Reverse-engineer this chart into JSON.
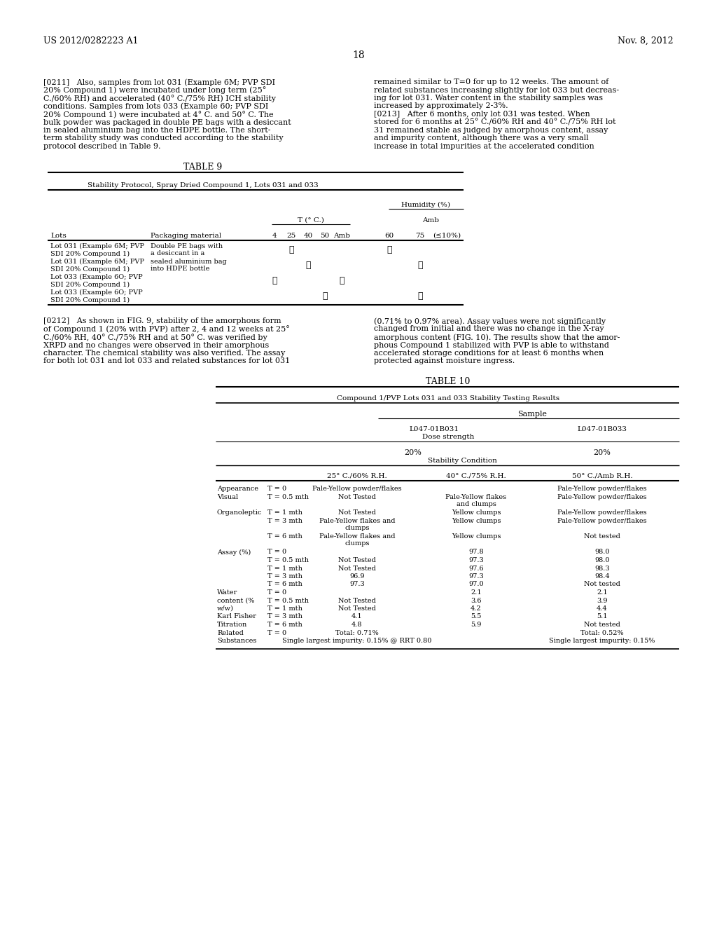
{
  "header_left": "US 2012/0282223 A1",
  "header_right": "Nov. 8, 2012",
  "page_number": "18",
  "para_211_left": "[0211]   Also, samples from lot 031 (Example 6M; PVP SDI\n20% Compound 1) were incubated under long term (25°\nC./60% RH) and accelerated (40° C./75% RH) ICH stability\nconditions. Samples from lots 033 (Example 60; PVP SDI\n20% Compound 1) were incubated at 4° C. and 50° C. The\nbulk powder was packaged in double PE bags with a desiccant\nin sealed aluminium bag into the HDPE bottle. The short-\nterm stability study was conducted according to the stability\nprotocol described in Table 9.",
  "para_211_right": "remained similar to T=0 for up to 12 weeks. The amount of\nrelated substances increasing slightly for lot 033 but decreas-\ning for lot 031. Water content in the stability samples was\nincreased by approximately 2-3%.\n[0213]   After 6 months, only lot 031 was tested. When\nstored for 6 months at 25° C./60% RH and 40° C./75% RH lot\n31 remained stable as judged by amorphous content, assay\nand impurity content, although there was a very small\nincrease in total impurities at the accelerated condition",
  "table9_title": "TABLE 9",
  "table9_subtitle": "Stability Protocol, Spray Dried Compound 1, Lots 031 and 033",
  "table9_humidity_label": "Humidity (%)",
  "table9_temp_label": "T (° C.)",
  "table9_amb_label": "Amb",
  "table9_col_headers": [
    "Lots",
    "Packaging material",
    "4",
    "25",
    "40",
    "50",
    "Amb",
    "60",
    "75",
    "(≤10%)"
  ],
  "para_212_left": "[0212]   As shown in FIG. 9, stability of the amorphous form\nof Compound 1 (20% with PVP) after 2, 4 and 12 weeks at 25°\nC./60% RH, 40° C./75% RH and at 50° C. was verified by\nXRPD and no changes were observed in their amorphous\ncharacter. The chemical stability was also verified. The assay\nfor both lot 031 and lot 033 and related substances for lot 031",
  "para_212_right": "(0.71% to 0.97% area). Assay values were not significantly\nchanged from initial and there was no change in the X-ray\namorphous content (FIG. 10). The results show that the amor-\nphous Compound 1 stabilized with PVP is able to withstand\naccelerated storage conditions for at least 6 months when\nprotected against moisture ingress.",
  "table10_title": "TABLE 10",
  "table10_subtitle": "Compound 1/PVP Lots 031 and 033 Stability Testing Results",
  "table10_sample_label": "Sample",
  "table10_lot031": "L047-01B031",
  "table10_lot033": "L047-01B033",
  "table10_dose_label": "Dose strength",
  "table10_dose_031": "20%",
  "table10_dose_033": "20%",
  "table10_stability_label": "Stability Condition",
  "table10_cond1": "25° C./60% R.H.",
  "table10_cond2": "40° C./75% R.H.",
  "table10_cond3": "50° C./Amb R.H.",
  "bg_color": "#ffffff",
  "text_color": "#000000"
}
